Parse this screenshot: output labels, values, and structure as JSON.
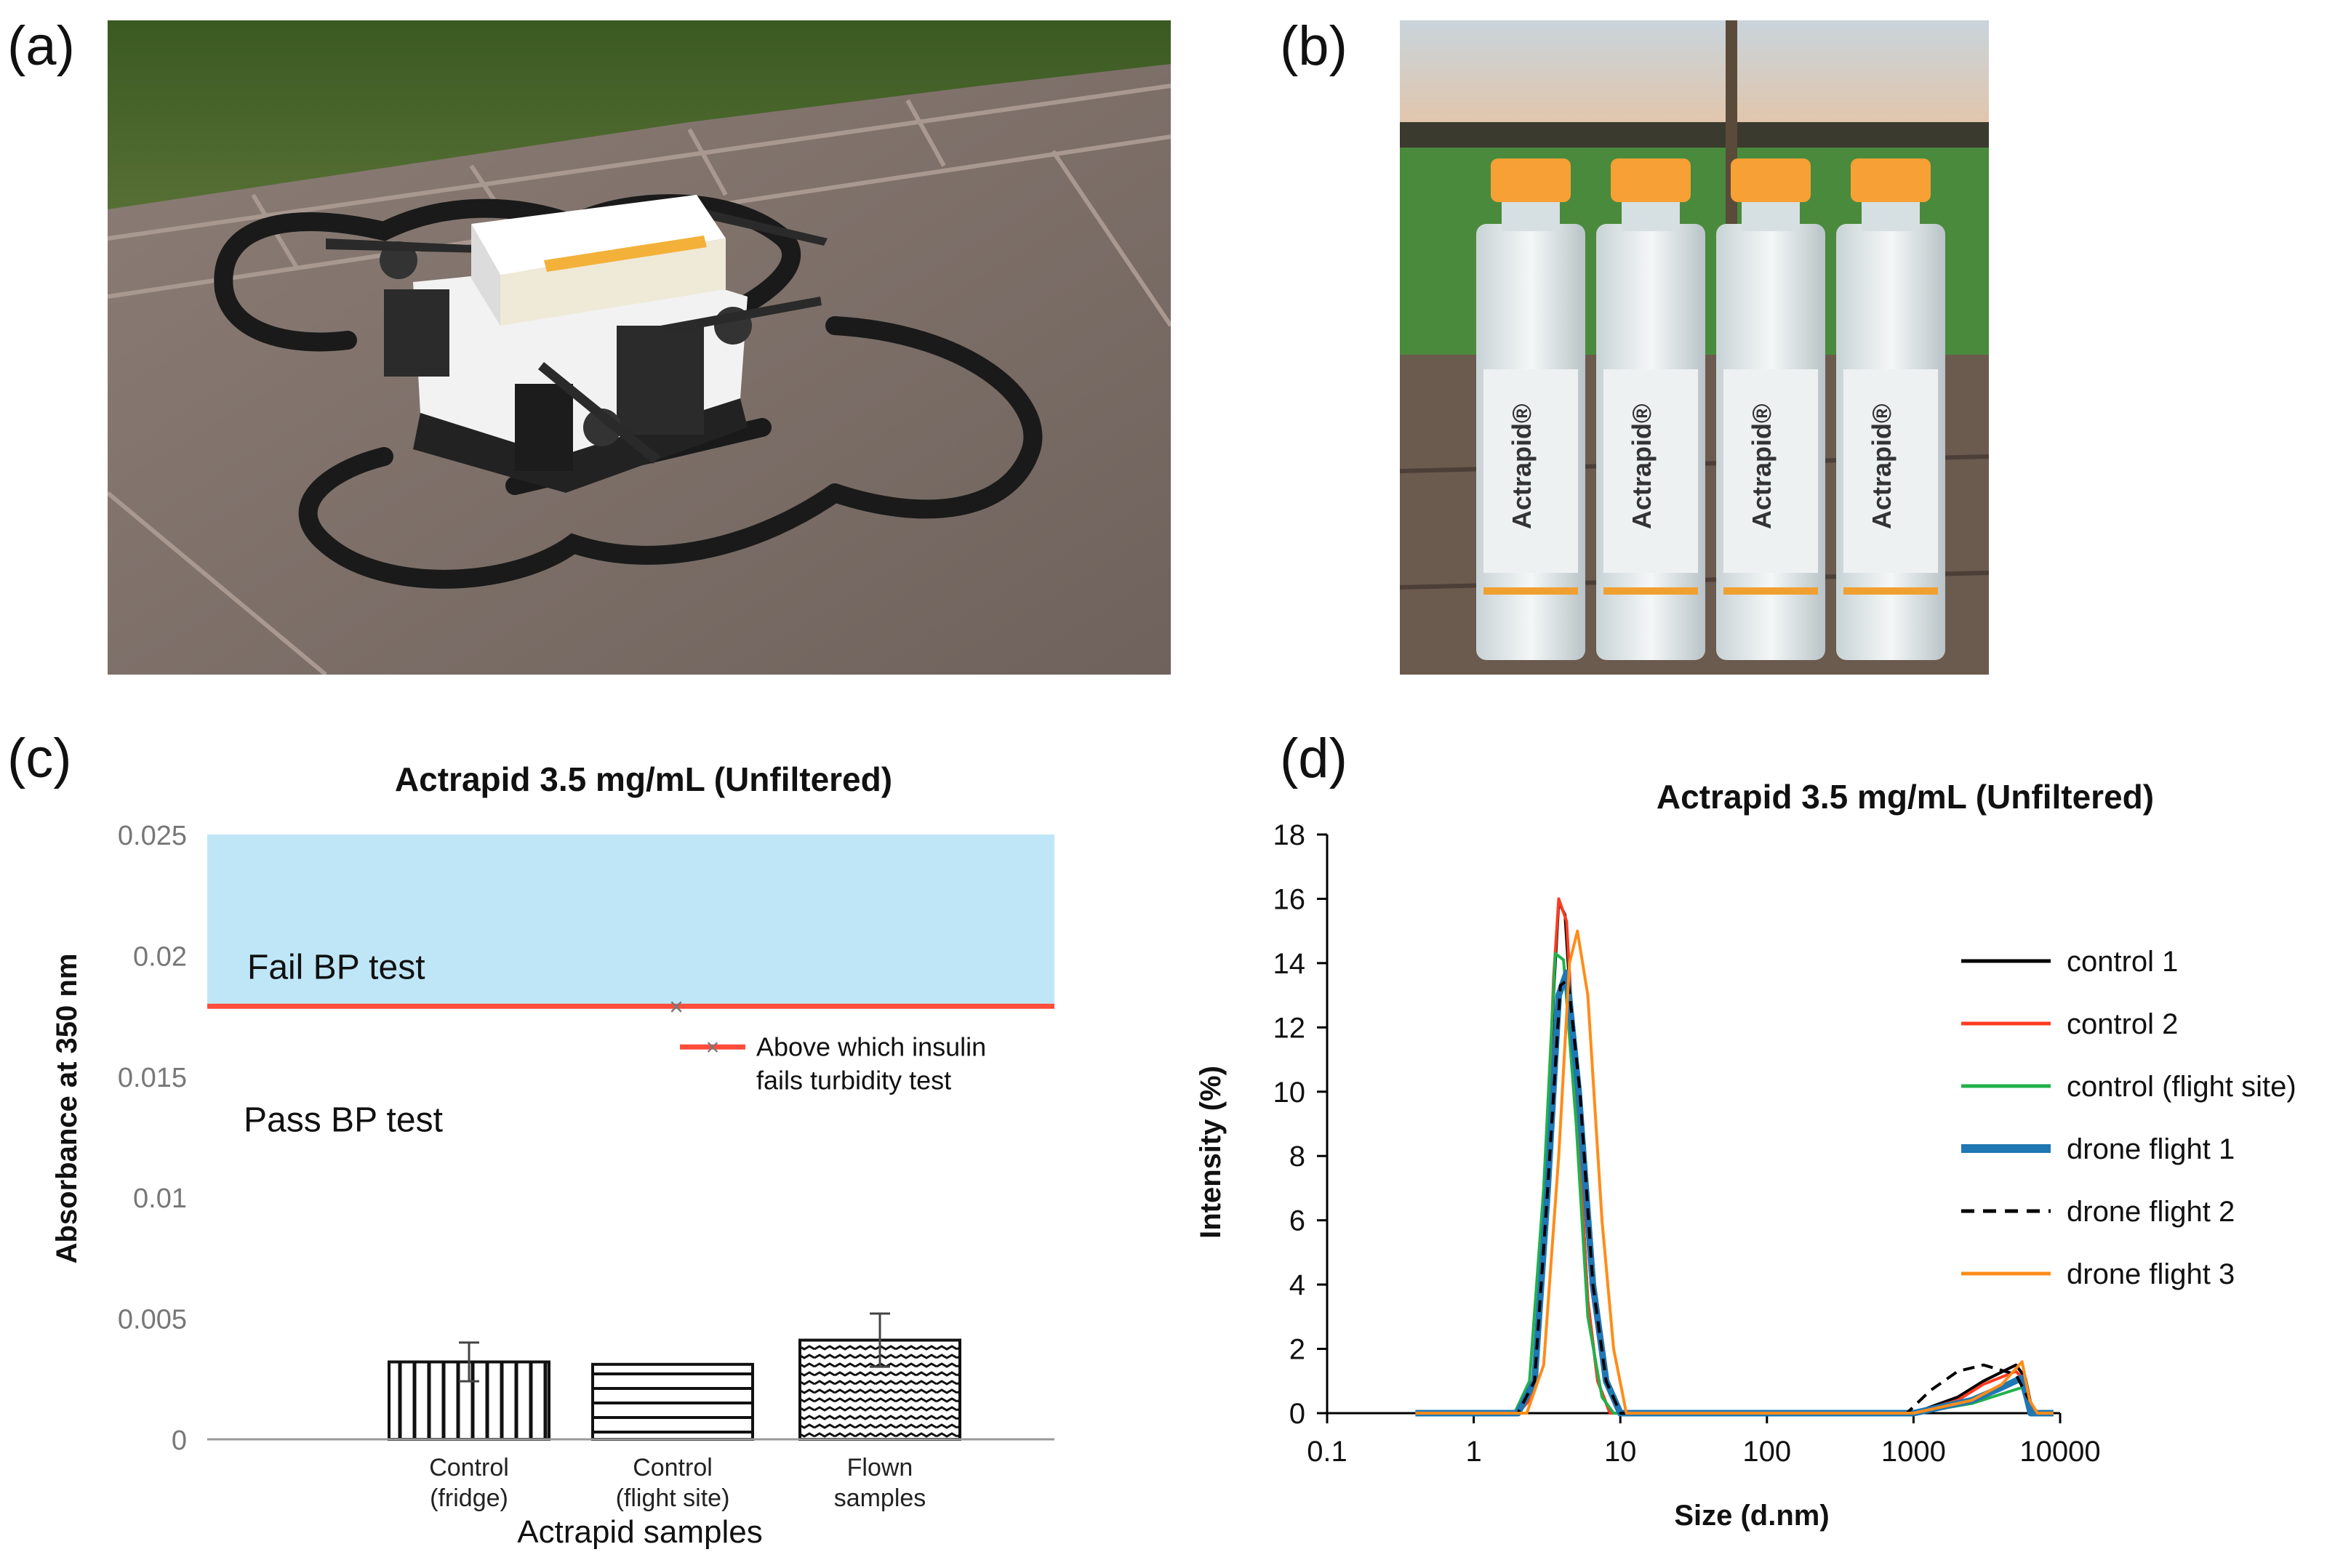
{
  "panels": {
    "a": {
      "letter": "(a)"
    },
    "b": {
      "letter": "(b)",
      "vial_label": "Actrapid®"
    },
    "c": {
      "letter": "(c)"
    },
    "d": {
      "letter": "(d)"
    }
  },
  "colors": {
    "fail_region": "#bfe6f7",
    "threshold_line": "#ff4c3b",
    "control_1": "#000000",
    "control_2": "#ff3b1f",
    "control_flight_site": "#22b14c",
    "drone_flight_1": "#1f77b4",
    "drone_flight_2": "#000000",
    "drone_flight_3": "#ff8c1a",
    "vial_cap": "#f7a035"
  },
  "chart_data": [
    {
      "id": "c",
      "type": "bar",
      "title": "Actrapid  3.5 mg/mL (Unfiltered)",
      "xlabel": "Actrapid samples",
      "ylabel": "Absorbance at 350 nm",
      "ylim": [
        0,
        0.025
      ],
      "yticks": [
        0,
        0.005,
        0.01,
        0.015,
        0.02,
        0.025
      ],
      "ytick_labels": [
        "0",
        "0.005",
        "0.01",
        "0.015",
        "0.02",
        "0.025"
      ],
      "grid": false,
      "categories": [
        {
          "line1": "Control",
          "line2": "(fridge)"
        },
        {
          "line1": "Control",
          "line2": "(flight site)"
        },
        {
          "line1": "Flown",
          "line2": "samples"
        }
      ],
      "values": [
        0.0032,
        0.0031,
        0.0041
      ],
      "errors": [
        0.0008,
        0.0,
        0.0011
      ],
      "patterns": [
        "vertical",
        "horizontal",
        "zigzag"
      ],
      "threshold": 0.0179,
      "fail_label": "Fail BP test",
      "pass_label": "Pass BP test",
      "legend": {
        "line1": "Above which insulin",
        "line2": "fails turbidity test"
      }
    },
    {
      "id": "d",
      "type": "line",
      "title": "Actrapid  3.5 mg/mL (Unfiltered)",
      "xlabel": "Size (d.nm)",
      "ylabel": "Intensity (%)",
      "xscale": "log",
      "xlim": [
        0.1,
        10000
      ],
      "ylim": [
        0,
        18
      ],
      "xticks": [
        0.1,
        1,
        10,
        100,
        1000,
        10000
      ],
      "xtick_labels": [
        "0.1",
        "1",
        "10",
        "100",
        "1000",
        "10000"
      ],
      "yticks": [
        0,
        2,
        4,
        6,
        8,
        10,
        12,
        14,
        16,
        18
      ],
      "ytick_labels": [
        "0",
        "2",
        "4",
        "6",
        "8",
        "10",
        "12",
        "14",
        "16",
        "18"
      ],
      "grid": false,
      "legend_position": "right",
      "series": [
        {
          "name": "control 1",
          "color": "#000000",
          "style": "solid",
          "points": [
            [
              0.4,
              0
            ],
            [
              2,
              0
            ],
            [
              2.5,
              0.5
            ],
            [
              3,
              5
            ],
            [
              3.5,
              13
            ],
            [
              3.8,
              15.9
            ],
            [
              4.2,
              15.5
            ],
            [
              5,
              10
            ],
            [
              6,
              3.5
            ],
            [
              7,
              1
            ],
            [
              8.5,
              0
            ],
            [
              1000,
              0
            ],
            [
              2000,
              0.5
            ],
            [
              3000,
              1
            ],
            [
              5000,
              1.5
            ],
            [
              5800,
              1.1
            ],
            [
              6500,
              0
            ],
            [
              9000,
              0
            ]
          ]
        },
        {
          "name": "control 2",
          "color": "#ff3b1f",
          "style": "solid",
          "points": [
            [
              0.4,
              0
            ],
            [
              2,
              0
            ],
            [
              2.5,
              0.5
            ],
            [
              3,
              5
            ],
            [
              3.5,
              13.5
            ],
            [
              3.8,
              16
            ],
            [
              4.3,
              15.3
            ],
            [
              5,
              10
            ],
            [
              6,
              3.5
            ],
            [
              7,
              1
            ],
            [
              8.5,
              0
            ],
            [
              1000,
              0
            ],
            [
              2000,
              0.4
            ],
            [
              3000,
              0.9
            ],
            [
              5000,
              1.3
            ],
            [
              5800,
              1
            ],
            [
              6500,
              0
            ],
            [
              9000,
              0
            ]
          ]
        },
        {
          "name": "control (flight site)",
          "color": "#22b14c",
          "style": "solid",
          "points": [
            [
              0.4,
              0
            ],
            [
              1.9,
              0
            ],
            [
              2.4,
              1
            ],
            [
              3,
              7
            ],
            [
              3.6,
              14.3
            ],
            [
              4.1,
              14.1
            ],
            [
              5,
              9
            ],
            [
              6,
              3
            ],
            [
              7.5,
              0.5
            ],
            [
              9,
              0
            ],
            [
              1000,
              0
            ],
            [
              2500,
              0.3
            ],
            [
              4000,
              0.6
            ],
            [
              5500,
              0.8
            ],
            [
              6200,
              0
            ],
            [
              9000,
              0
            ]
          ]
        },
        {
          "name": "drone flight 1",
          "color": "#1f77b4",
          "style": "solid",
          "width": "thick",
          "points": [
            [
              0.4,
              0
            ],
            [
              2,
              0
            ],
            [
              2.6,
              1
            ],
            [
              3.2,
              7
            ],
            [
              3.8,
              13
            ],
            [
              4.3,
              13.7
            ],
            [
              5.2,
              10
            ],
            [
              6.5,
              4
            ],
            [
              8,
              1
            ],
            [
              10,
              0
            ],
            [
              1000,
              0
            ],
            [
              2500,
              0.4
            ],
            [
              4000,
              0.8
            ],
            [
              5500,
              1.1
            ],
            [
              6300,
              0
            ],
            [
              9000,
              0
            ]
          ]
        },
        {
          "name": "drone flight 2",
          "color": "#000000",
          "style": "dashed",
          "points": [
            [
              0.4,
              0
            ],
            [
              2,
              0
            ],
            [
              2.6,
              1
            ],
            [
              3.2,
              7
            ],
            [
              3.9,
              13.3
            ],
            [
              4.4,
              13.5
            ],
            [
              5.3,
              10
            ],
            [
              6.5,
              4
            ],
            [
              8,
              1
            ],
            [
              10,
              0
            ],
            [
              900,
              0
            ],
            [
              1300,
              0.7
            ],
            [
              2000,
              1.3
            ],
            [
              3000,
              1.5
            ],
            [
              5000,
              1.2
            ],
            [
              6000,
              0.5
            ],
            [
              7000,
              0
            ],
            [
              9000,
              0
            ]
          ]
        },
        {
          "name": "drone flight 3",
          "color": "#ff8c1a",
          "style": "solid",
          "points": [
            [
              0.4,
              0
            ],
            [
              2.3,
              0
            ],
            [
              3,
              1.5
            ],
            [
              3.8,
              8
            ],
            [
              4.5,
              14
            ],
            [
              5.1,
              15
            ],
            [
              6,
              13
            ],
            [
              7.5,
              6
            ],
            [
              9,
              2
            ],
            [
              11,
              0
            ],
            [
              1000,
              0
            ],
            [
              2500,
              0.4
            ],
            [
              4000,
              0.9
            ],
            [
              5500,
              1.6
            ],
            [
              6200,
              0.4
            ],
            [
              7000,
              0
            ],
            [
              9000,
              0
            ]
          ]
        }
      ]
    }
  ]
}
